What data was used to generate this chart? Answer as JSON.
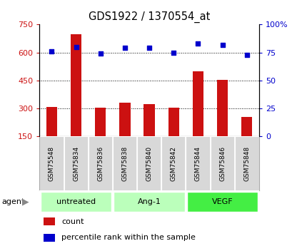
{
  "title": "GDS1922 / 1370554_at",
  "samples": [
    "GSM75548",
    "GSM75834",
    "GSM75836",
    "GSM75838",
    "GSM75840",
    "GSM75842",
    "GSM75844",
    "GSM75846",
    "GSM75848"
  ],
  "counts": [
    310,
    700,
    305,
    330,
    325,
    305,
    500,
    455,
    255
  ],
  "percentiles": [
    76,
    80,
    74,
    79,
    79,
    75,
    83,
    82,
    73
  ],
  "groups": [
    {
      "label": "untreated",
      "start": 0,
      "end": 3,
      "color": "#bbffbb"
    },
    {
      "label": "Ang-1",
      "start": 3,
      "end": 6,
      "color": "#bbffbb"
    },
    {
      "label": "VEGF",
      "start": 6,
      "end": 9,
      "color": "#44ee44"
    }
  ],
  "bar_color": "#cc1111",
  "dot_color": "#0000cc",
  "left_yticks": [
    150,
    300,
    450,
    600,
    750
  ],
  "right_yticks": [
    0,
    25,
    50,
    75,
    100
  ],
  "ylim_left": [
    150,
    750
  ],
  "ylim_right": [
    0,
    100
  ],
  "legend_count_label": "count",
  "legend_pct_label": "percentile rank within the sample"
}
